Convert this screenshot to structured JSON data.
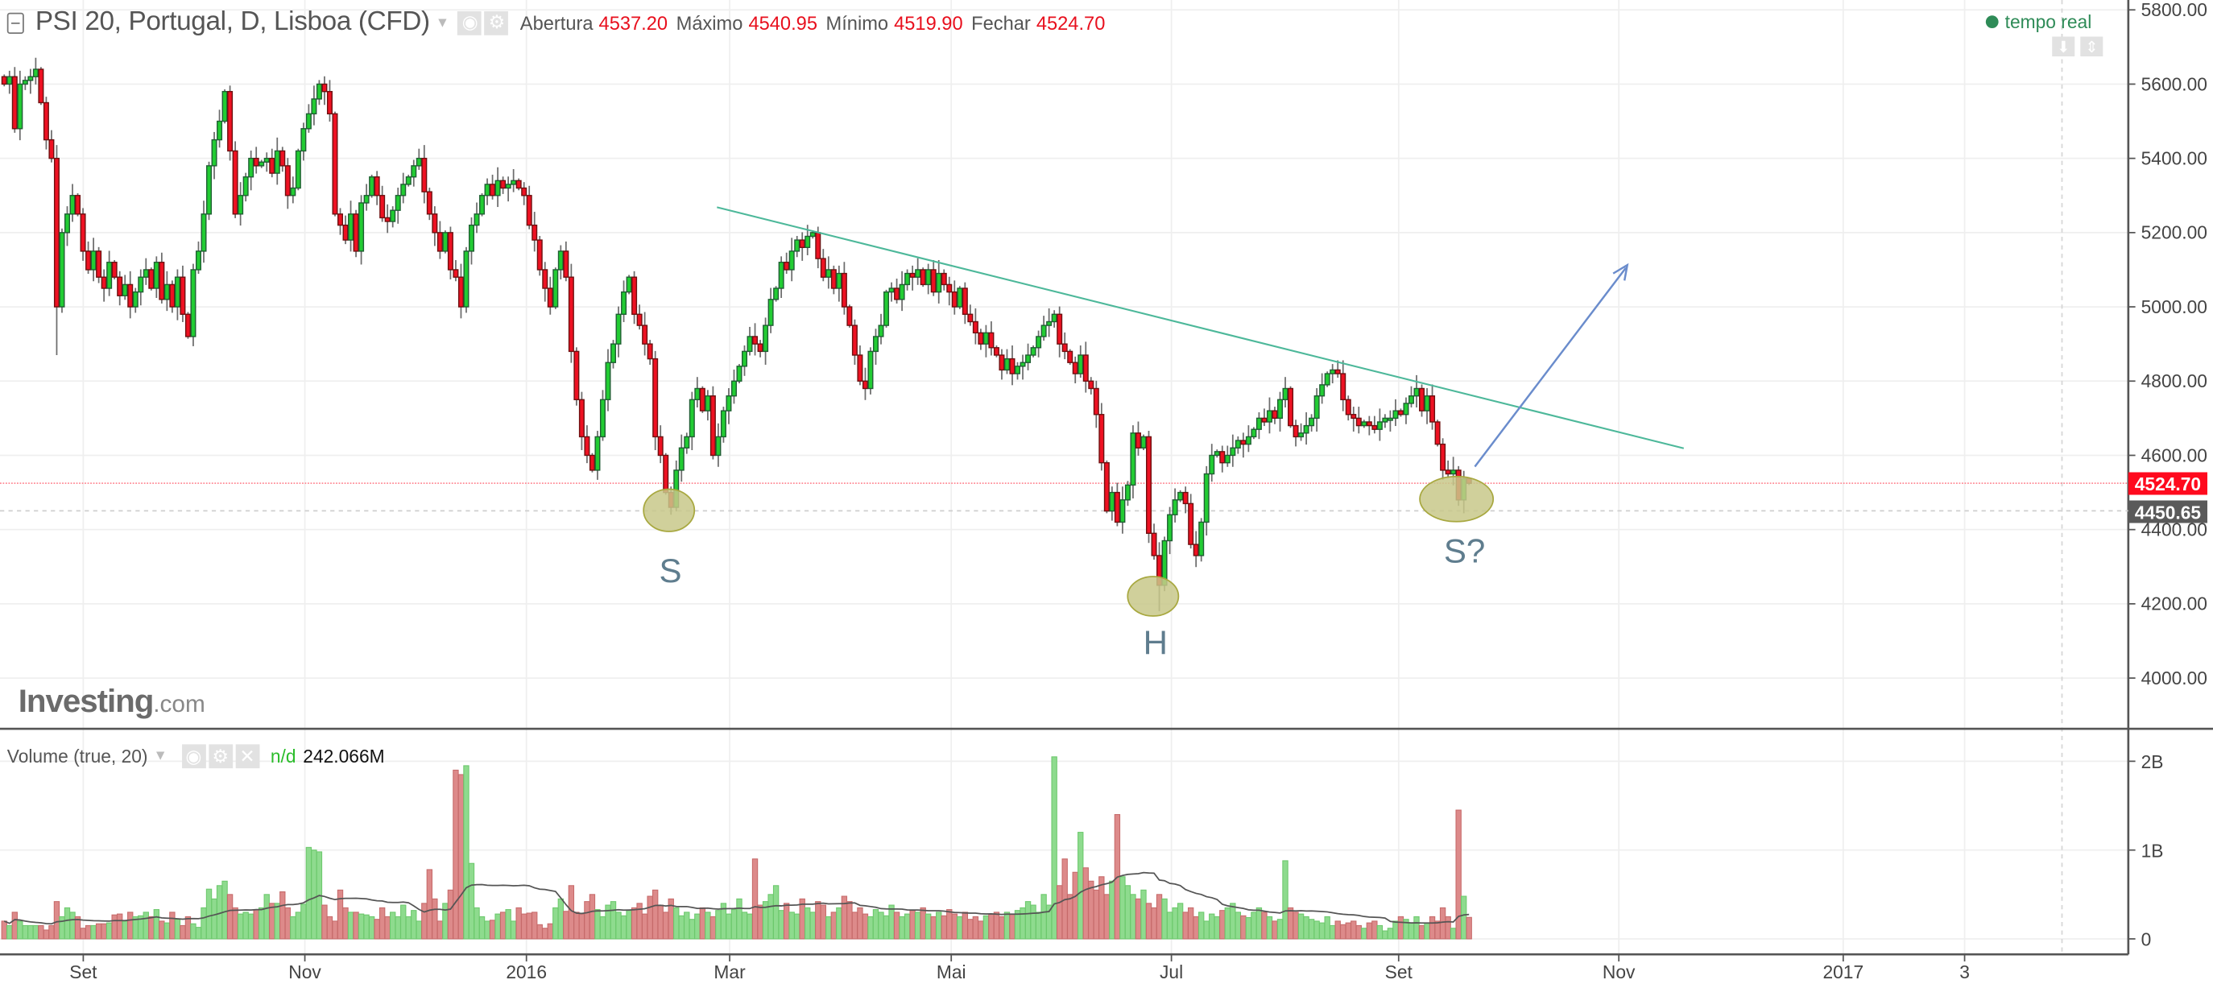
{
  "header": {
    "title": "PSI 20, Portugal, D, Lisboa (CFD)",
    "open_label": "Abertura",
    "open": "4537.20",
    "high_label": "Máximo",
    "high": "4540.95",
    "low_label": "Mínimo",
    "low": "4519.90",
    "close_label": "Fechar",
    "close": "4524.70",
    "realtime": "tempo real",
    "icons": [
      "collapse-icon",
      "chevron-down-icon",
      "eye-icon",
      "gear-icon",
      "arrow-down-icon",
      "arrow-updown-icon"
    ]
  },
  "volume_panel": {
    "title": "Volume (true, 20)",
    "nd": "n/d",
    "value": "242.066M",
    "icons": [
      "eye-icon",
      "gear-icon",
      "close-icon"
    ]
  },
  "logo": {
    "brand": "Investing",
    "suffix": ".com"
  },
  "price_labels": {
    "last": "4524.70",
    "marker": "4450.65"
  },
  "annotations": {
    "left_shoulder": "S",
    "head": "H",
    "right_shoulder": "S?"
  },
  "colors": {
    "up": "#22cc33",
    "down": "#ee1122",
    "trendline": "#4db89a",
    "arrow": "#6a8ccc",
    "ellipse": "#c8c88a",
    "last_price": "#ff0a1e",
    "marker_price": "#5a5a5a",
    "realtime": "#2e8b57"
  },
  "chart_data": [
    {
      "type": "candlestick",
      "title": "PSI 20, Portugal, D, Lisboa (CFD)",
      "y_ticks": [
        "4000.00",
        "4200.00",
        "4400.00",
        "4600.00",
        "4800.00",
        "5000.00",
        "5200.00",
        "5400.00",
        "5600.00",
        "5800.00"
      ],
      "ylim": [
        4000,
        5800
      ],
      "x_ticks": [
        "Set",
        "Nov",
        "2016",
        "Mar",
        "Mai",
        "Jul",
        "Set",
        "Nov",
        "2017",
        "3"
      ],
      "grid": true,
      "last_candle": {
        "open": 4537.2,
        "high": 4540.95,
        "low": 4519.9,
        "close": 4524.7
      },
      "closes": [
        5600,
        5620,
        5480,
        5600,
        5610,
        5620,
        5640,
        5550,
        5450,
        5400,
        5000,
        5200,
        5250,
        5300,
        5250,
        5150,
        5100,
        5150,
        5080,
        5050,
        5120,
        5080,
        5030,
        5060,
        5000,
        5040,
        5080,
        5100,
        5050,
        5120,
        5020,
        5060,
        5000,
        5080,
        4980,
        4920,
        5100,
        5150,
        5250,
        5380,
        5450,
        5500,
        5580,
        5420,
        5250,
        5300,
        5350,
        5400,
        5380,
        5390,
        5400,
        5360,
        5420,
        5380,
        5300,
        5320,
        5420,
        5480,
        5520,
        5560,
        5600,
        5580,
        5520,
        5250,
        5220,
        5180,
        5250,
        5150,
        5280,
        5300,
        5350,
        5300,
        5240,
        5230,
        5260,
        5300,
        5330,
        5350,
        5380,
        5400,
        5310,
        5250,
        5200,
        5150,
        5200,
        5100,
        5080,
        5000,
        5150,
        5220,
        5250,
        5300,
        5330,
        5300,
        5340,
        5320,
        5330,
        5340,
        5320,
        5300,
        5220,
        5180,
        5100,
        5050,
        5000,
        5100,
        5150,
        5080,
        4880,
        4750,
        4650,
        4600,
        4560,
        4650,
        4750,
        4850,
        4900,
        4980,
        5040,
        5080,
        4980,
        4950,
        4900,
        4860,
        4650,
        4600,
        4500,
        4460,
        4560,
        4620,
        4650,
        4750,
        4780,
        4720,
        4760,
        4600,
        4650,
        4720,
        4760,
        4800,
        4840,
        4880,
        4920,
        4900,
        4880,
        4950,
        5020,
        5050,
        5120,
        5100,
        5150,
        5180,
        5160,
        5190,
        5200,
        5130,
        5080,
        5100,
        5050,
        5090,
        5000,
        4950,
        4870,
        4800,
        4780,
        4880,
        4920,
        4950,
        5040,
        5050,
        5020,
        5060,
        5090,
        5080,
        5100,
        5060,
        5100,
        5040,
        5090,
        5060,
        5040,
        5000,
        5050,
        4980,
        4960,
        4930,
        4900,
        4930,
        4890,
        4870,
        4830,
        4860,
        4820,
        4840,
        4850,
        4870,
        4890,
        4920,
        4950,
        4960,
        4980,
        4900,
        4880,
        4850,
        4820,
        4870,
        4800,
        4780,
        4710,
        4580,
        4450,
        4500,
        4420,
        4480,
        4520,
        4660,
        4620,
        4650,
        4390,
        4330,
        4250,
        4370,
        4440,
        4480,
        4500,
        4470,
        4360,
        4330,
        4420,
        4550,
        4600,
        4610,
        4580,
        4600,
        4620,
        4640,
        4630,
        4650,
        4670,
        4700,
        4690,
        4720,
        4700,
        4750,
        4780,
        4680,
        4650,
        4660,
        4680,
        4700,
        4760,
        4790,
        4820,
        4830,
        4820,
        4750,
        4710,
        4700,
        4680,
        4690,
        4680,
        4670,
        4690,
        4700,
        4700,
        4720,
        4710,
        4740,
        4760,
        4780,
        4720,
        4760,
        4690,
        4630,
        4560,
        4550,
        4560,
        4480,
        4537.2,
        4524.7
      ]
    },
    {
      "type": "bar",
      "title": "Volume (true, 20)",
      "y_ticks": [
        "0",
        "1B",
        "2B"
      ],
      "ylim_millions": [
        0,
        2300
      ],
      "moving_average_period": 20,
      "volumes_millions": [
        200,
        150,
        300,
        200,
        150,
        150,
        150,
        150,
        100,
        150,
        420,
        250,
        350,
        300,
        250,
        120,
        150,
        150,
        170,
        170,
        180,
        270,
        280,
        200,
        300,
        250,
        260,
        300,
        250,
        330,
        200,
        180,
        300,
        220,
        150,
        250,
        170,
        130,
        350,
        560,
        450,
        600,
        650,
        500,
        350,
        280,
        300,
        280,
        330,
        350,
        500,
        400,
        400,
        530,
        350,
        250,
        300,
        390,
        1030,
        1000,
        980,
        380,
        250,
        200,
        550,
        350,
        300,
        300,
        280,
        270,
        250,
        220,
        350,
        250,
        300,
        250,
        380,
        250,
        320,
        200,
        400,
        780,
        450,
        200,
        400,
        550,
        1900,
        1850,
        1950,
        850,
        350,
        250,
        200,
        210,
        280,
        300,
        330,
        200,
        350,
        280,
        290,
        300,
        160,
        120,
        170,
        350,
        450,
        310,
        600,
        300,
        280,
        420,
        500,
        330,
        250,
        380,
        420,
        300,
        260,
        320,
        350,
        400,
        280,
        480,
        550,
        380,
        300,
        450,
        350,
        260,
        300,
        220,
        280,
        350,
        300,
        250,
        320,
        400,
        280,
        330,
        450,
        300,
        280,
        900,
        380,
        420,
        500,
        600,
        320,
        400,
        300,
        280,
        450,
        350,
        300,
        420,
        380,
        250,
        300,
        350,
        480,
        420,
        300,
        350,
        280,
        250,
        330,
        300,
        260,
        380,
        300,
        250,
        280,
        320,
        300,
        350,
        280,
        250,
        300,
        260,
        330,
        280,
        250,
        300,
        220,
        250,
        200,
        260,
        280,
        300,
        250,
        300,
        280,
        320,
        350,
        420,
        380,
        300,
        500,
        380,
        2050,
        600,
        900,
        500,
        750,
        1200,
        800,
        650,
        550,
        700,
        500,
        650,
        1400,
        700,
        600,
        500,
        450,
        550,
        400,
        350,
        500,
        450,
        300,
        350,
        400,
        300,
        350,
        250,
        300,
        200,
        280,
        250,
        320,
        350,
        400,
        300,
        260,
        240,
        300,
        350,
        300,
        250,
        200,
        220,
        880,
        350,
        300,
        280,
        250,
        220,
        200,
        180,
        250,
        150,
        200,
        160,
        180,
        200,
        150,
        120,
        180,
        200,
        150,
        90,
        120,
        200,
        250,
        220,
        180,
        250,
        150,
        180,
        250,
        200,
        350,
        250,
        120,
        1450,
        480,
        242.066
      ]
    }
  ]
}
